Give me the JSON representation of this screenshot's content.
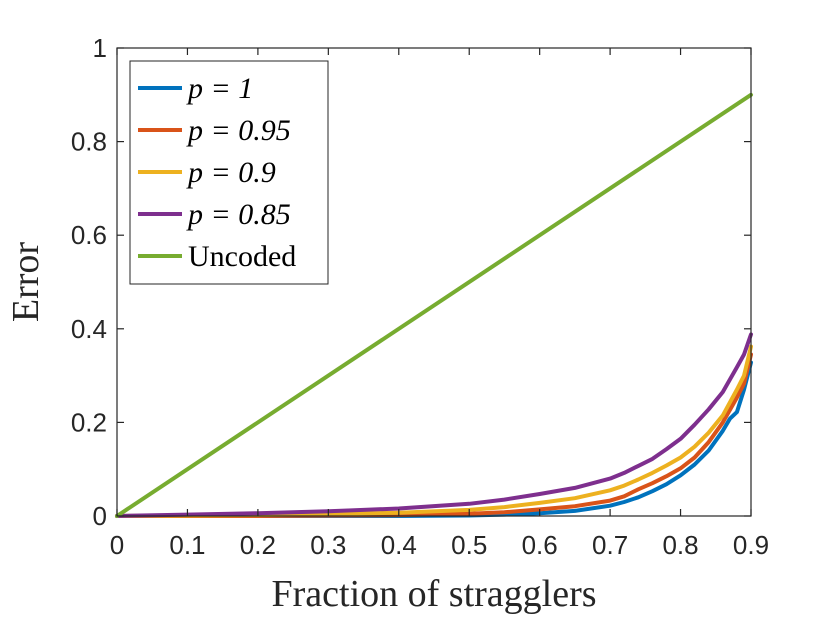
{
  "chart_data": {
    "type": "line",
    "xlabel": "Fraction of stragglers",
    "ylabel": "Error",
    "xlim": [
      0,
      0.9
    ],
    "ylim": [
      0,
      1
    ],
    "xticks": [
      "0",
      "0.1",
      "0.2",
      "0.3",
      "0.4",
      "0.5",
      "0.6",
      "0.7",
      "0.8",
      "0.9"
    ],
    "yticks": [
      "0",
      "0.2",
      "0.4",
      "0.6",
      "0.8",
      "1"
    ],
    "grid": false,
    "legend_position": "top-left",
    "series": [
      {
        "name": "p = 1",
        "color": "#0072BD",
        "x": [
          0,
          0.1,
          0.2,
          0.3,
          0.4,
          0.5,
          0.55,
          0.6,
          0.65,
          0.7,
          0.72,
          0.74,
          0.76,
          0.78,
          0.8,
          0.82,
          0.84,
          0.86,
          0.87,
          0.88,
          0.89,
          0.9
        ],
        "y": [
          0,
          0,
          0,
          0,
          0,
          0.001,
          0.003,
          0.006,
          0.011,
          0.022,
          0.03,
          0.04,
          0.053,
          0.068,
          0.087,
          0.11,
          0.14,
          0.182,
          0.208,
          0.222,
          0.27,
          0.328
        ]
      },
      {
        "name": "p = 0.95",
        "color": "#D95319",
        "x": [
          0,
          0.1,
          0.2,
          0.3,
          0.4,
          0.5,
          0.55,
          0.6,
          0.65,
          0.7,
          0.72,
          0.74,
          0.76,
          0.78,
          0.8,
          0.82,
          0.84,
          0.86,
          0.88,
          0.89,
          0.9
        ],
        "y": [
          0,
          0,
          0,
          0.001,
          0.002,
          0.005,
          0.008,
          0.014,
          0.021,
          0.033,
          0.042,
          0.057,
          0.07,
          0.085,
          0.102,
          0.125,
          0.158,
          0.2,
          0.253,
          0.283,
          0.345
        ]
      },
      {
        "name": "p = 0.9",
        "color": "#EDB120",
        "x": [
          0,
          0.1,
          0.2,
          0.3,
          0.4,
          0.5,
          0.55,
          0.6,
          0.65,
          0.7,
          0.72,
          0.74,
          0.76,
          0.78,
          0.8,
          0.82,
          0.84,
          0.86,
          0.88,
          0.89,
          0.9
        ],
        "y": [
          0,
          0.001,
          0.002,
          0.004,
          0.007,
          0.013,
          0.019,
          0.028,
          0.038,
          0.055,
          0.065,
          0.078,
          0.092,
          0.108,
          0.125,
          0.148,
          0.178,
          0.215,
          0.27,
          0.3,
          0.362
        ]
      },
      {
        "name": "p = 0.85",
        "color": "#7E2F8E",
        "x": [
          0,
          0.1,
          0.2,
          0.3,
          0.4,
          0.5,
          0.55,
          0.6,
          0.65,
          0.7,
          0.72,
          0.74,
          0.76,
          0.78,
          0.8,
          0.82,
          0.84,
          0.86,
          0.88,
          0.89,
          0.9
        ],
        "y": [
          0,
          0.003,
          0.006,
          0.01,
          0.016,
          0.026,
          0.035,
          0.047,
          0.06,
          0.08,
          0.092,
          0.107,
          0.122,
          0.143,
          0.165,
          0.195,
          0.228,
          0.265,
          0.318,
          0.345,
          0.388
        ]
      },
      {
        "name": "Uncoded",
        "color": "#77AC30",
        "x": [
          0,
          0.9
        ],
        "y": [
          0,
          0.9
        ]
      }
    ]
  }
}
